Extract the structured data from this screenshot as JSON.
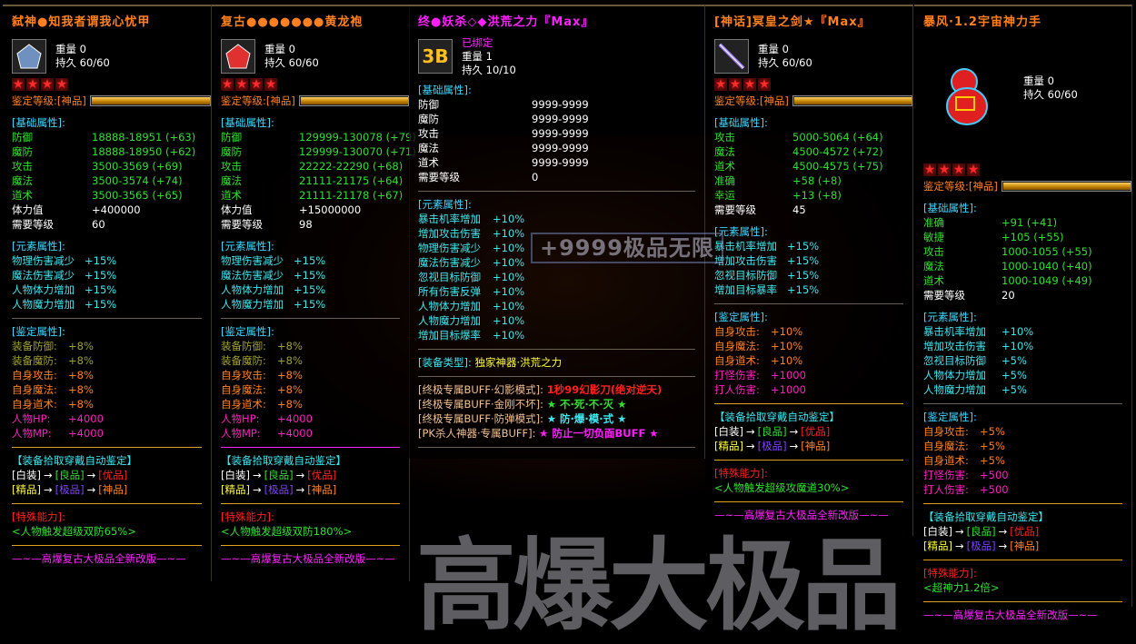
{
  "watermark": {
    "small": "+9999极品无限",
    "big": "高爆大极品"
  },
  "colors": {
    "green": "#30e030",
    "cyan": "#3ce8f0",
    "olive": "#a0a030",
    "orange": "#ff8020",
    "magenta": "#ff20c0",
    "white": "#ffffff",
    "header": "#3cd8ff",
    "divider_gold": "#e0a020",
    "divider_gray": "#6a6050"
  },
  "common": {
    "weight_label": "重量",
    "durability_label": "持久",
    "grade_label": "鉴定等级:",
    "arrow": "→",
    "autoid_header": "【装备拾取穿戴自动鉴定】",
    "tiers_row1": [
      {
        "text": "[白装]",
        "color": "#ffffff"
      },
      {
        "text": "[良品]",
        "color": "#30e030"
      },
      {
        "text": "[优品]",
        "color": "#ff2020"
      }
    ],
    "tiers_row2": [
      {
        "text": "[精品]",
        "color": "#ffff30"
      },
      {
        "text": "[极品]",
        "color": "#8040ff"
      },
      {
        "text": "[神品]",
        "color": "#ff8020"
      }
    ],
    "special_header": "[特殊能力]:",
    "footer": "—~—高爆复古大极品全新改版—~—"
  },
  "panels": [
    {
      "title": "弑神●知我者谓我心忧甲",
      "title_color": "#ff8020",
      "icon": "armor-icon",
      "icon_color": "#7090c0",
      "weight": "0",
      "durability": "60/60",
      "stars": 4,
      "grade": "[神品]",
      "grade_fill": 1.0,
      "basic_header": "[基础属性]:",
      "basic": [
        {
          "k": "防御",
          "v": "18888-18951 (+63)",
          "color": "#30e030"
        },
        {
          "k": "魔防",
          "v": "18888-18950 (+62)",
          "color": "#30e030"
        },
        {
          "k": "攻击",
          "v": "3500-3569 (+69)",
          "color": "#30e030"
        },
        {
          "k": "魔法",
          "v": "3500-3574 (+74)",
          "color": "#30e030"
        },
        {
          "k": "道术",
          "v": "3500-3565 (+65)",
          "color": "#30e030"
        },
        {
          "k": "体力值",
          "v": "+400000",
          "color": "#ffffff"
        },
        {
          "k": "需要等级",
          "v": "60",
          "color": "#ffffff"
        }
      ],
      "element_header": "[元素属性]:",
      "element": [
        {
          "k": "物理伤害减少",
          "v": "+15%"
        },
        {
          "k": "魔法伤害减少",
          "v": "+15%"
        },
        {
          "k": "人物体力增加",
          "v": "+15%"
        },
        {
          "k": "人物魔力增加",
          "v": "+15%"
        }
      ],
      "ident_header": "[鉴定属性]:",
      "ident": [
        {
          "k": "装备防御:",
          "v": "+8%",
          "color": "#a0a030"
        },
        {
          "k": "装备魔防:",
          "v": "+8%",
          "color": "#a0a030"
        },
        {
          "k": "自身攻击:",
          "v": "+8%",
          "color": "#ff8020"
        },
        {
          "k": "自身魔法:",
          "v": "+8%",
          "color": "#ff8020"
        },
        {
          "k": "自身道术:",
          "v": "+8%",
          "color": "#ff8020"
        },
        {
          "k": "人物HP:",
          "v": "+4000",
          "color": "#ff20c0"
        },
        {
          "k": "人物MP:",
          "v": "+4000",
          "color": "#ff20c0"
        }
      ],
      "ident_divider": "#e0a020",
      "special": "<人物触发超级双防65%>"
    },
    {
      "title": "复古●●●●●●●黄龙袍",
      "title_color": "#ff8020",
      "icon": "robe-icon",
      "icon_color": "#e03030",
      "weight": "0",
      "durability": "60/60",
      "stars": 4,
      "grade": "[神品]",
      "grade_fill": 1.0,
      "basic_header": "[基础属性]:",
      "basic": [
        {
          "k": "防御",
          "v": "129999-130078 (+79)",
          "color": "#30e030"
        },
        {
          "k": "魔防",
          "v": "129999-130070 (+71)",
          "color": "#30e030"
        },
        {
          "k": "攻击",
          "v": "22222-22290 (+68)",
          "color": "#30e030"
        },
        {
          "k": "魔法",
          "v": "21111-21175 (+64)",
          "color": "#30e030"
        },
        {
          "k": "道术",
          "v": "21111-21178 (+67)",
          "color": "#30e030"
        },
        {
          "k": "体力值",
          "v": "+15000000",
          "color": "#ffffff"
        },
        {
          "k": "需要等级",
          "v": "98",
          "color": "#ffffff"
        }
      ],
      "element_header": "[元素属性]:",
      "element": [
        {
          "k": "物理伤害减少",
          "v": "+15%"
        },
        {
          "k": "魔法伤害减少",
          "v": "+15%"
        },
        {
          "k": "人物体力增加",
          "v": "+15%"
        },
        {
          "k": "人物魔力增加",
          "v": "+15%"
        }
      ],
      "ident_header": "[鉴定属性]:",
      "ident": [
        {
          "k": "装备防御:",
          "v": "+8%",
          "color": "#a0a030"
        },
        {
          "k": "装备魔防:",
          "v": "+8%",
          "color": "#a0a030"
        },
        {
          "k": "自身攻击:",
          "v": "+8%",
          "color": "#ff8020"
        },
        {
          "k": "自身魔法:",
          "v": "+8%",
          "color": "#ff8020"
        },
        {
          "k": "自身道术:",
          "v": "+8%",
          "color": "#ff8020"
        },
        {
          "k": "人物HP:",
          "v": "+4000",
          "color": "#ff20c0"
        },
        {
          "k": "人物MP:",
          "v": "+4000",
          "color": "#ff20c0"
        }
      ],
      "ident_divider": "#ff20ff",
      "special": "<人物触发超级双防180%>"
    },
    {
      "title": "终●妖杀◇◆洪荒之力『Max』",
      "title_color": "#ff20ff",
      "icon": "emblem-icon",
      "icon_color": "#ffc020",
      "bound": "已绑定",
      "weight": "1",
      "durability": "10/10",
      "basic_header": "[基础属性]:",
      "basic": [
        {
          "k": "防御",
          "v": "9999-9999",
          "color": "#ffffff"
        },
        {
          "k": "魔防",
          "v": "9999-9999",
          "color": "#ffffff"
        },
        {
          "k": "攻击",
          "v": "9999-9999",
          "color": "#ffffff"
        },
        {
          "k": "魔法",
          "v": "9999-9999",
          "color": "#ffffff"
        },
        {
          "k": "道术",
          "v": "9999-9999",
          "color": "#ffffff"
        },
        {
          "k": "需要等级",
          "v": "0",
          "color": "#ffffff"
        }
      ],
      "element_header": "[元素属性]:",
      "element": [
        {
          "k": "暴击机率增加",
          "v": "+10%"
        },
        {
          "k": "增加攻击伤害",
          "v": "+10%"
        },
        {
          "k": "物理伤害减少",
          "v": "+10%"
        },
        {
          "k": "魔法伤害减少",
          "v": "+10%"
        },
        {
          "k": "忽视目标防御",
          "v": "+10%"
        },
        {
          "k": "所有伤害反弹",
          "v": "+10%"
        },
        {
          "k": "人物体力增加",
          "v": "+10%"
        },
        {
          "k": "人物魔力增加",
          "v": "+10%"
        },
        {
          "k": "增加目标爆率",
          "v": "+10%"
        }
      ],
      "type_label": "[装备类型]:",
      "type_value": "独家神器·洪荒之力",
      "buffs": [
        {
          "label": "[终极专属BUFF·幻影模式]:",
          "value": "1秒99幻影刀(绝对逆天)",
          "color": "#ff2020"
        },
        {
          "label": "[终极专属BUFF·金刚不坏]:",
          "value": "★ 不·死·不·灭 ★",
          "color": "#30e030"
        },
        {
          "label": "[终极专属BUFF·防弹模式]:",
          "value": "★ 防·爆·模·式 ★",
          "color": "#3ce8f0"
        },
        {
          "label": "[PK杀人神器·专属BUFF]:",
          "value": "★ 防止一切负面BUFF ★",
          "color": "#ff20ff"
        }
      ]
    },
    {
      "title": "[神话]冥皇之剑★『Max』",
      "title_color": "#ff8020",
      "icon": "sword-icon",
      "icon_color": "#a080ff",
      "weight": "0",
      "durability": "60/60",
      "stars": 4,
      "grade": "[神品]",
      "grade_fill": 1.0,
      "basic_header": "[基础属性]:",
      "basic": [
        {
          "k": "攻击",
          "v": "5000-5064 (+64)",
          "color": "#30e030"
        },
        {
          "k": "魔法",
          "v": "4500-4572 (+72)",
          "color": "#30e030"
        },
        {
          "k": "道术",
          "v": "4500-4575 (+75)",
          "color": "#30e030"
        },
        {
          "k": "准确",
          "v": "+58 (+8)",
          "color": "#30e030"
        },
        {
          "k": "幸运",
          "v": "+13 (+8)",
          "color": "#30e030"
        },
        {
          "k": "需要等级",
          "v": "45",
          "color": "#ffffff"
        }
      ],
      "element_header": "[元素属性]:",
      "element": [
        {
          "k": "暴击机率增加",
          "v": "+15%"
        },
        {
          "k": "增加攻击伤害",
          "v": "+15%"
        },
        {
          "k": "忽视目标防御",
          "v": "+15%"
        },
        {
          "k": "增加目标暴率",
          "v": "+15%"
        }
      ],
      "ident_header": "[鉴定属性]:",
      "ident": [
        {
          "k": "自身攻击:",
          "v": "+10%",
          "color": "#ff8020"
        },
        {
          "k": "自身魔法:",
          "v": "+10%",
          "color": "#ff8020"
        },
        {
          "k": "自身道术:",
          "v": "+10%",
          "color": "#ff8020"
        },
        {
          "k": "打怪伤害:",
          "v": "+1000",
          "color": "#ff20c0"
        },
        {
          "k": "打人伤害:",
          "v": "+1000",
          "color": "#ff20c0"
        }
      ],
      "ident_divider": "#e0a020",
      "special": "<人物触发超级攻魔道30%>"
    },
    {
      "title": "暴风·1.2宇宙神力手",
      "title_color": "#ff8020",
      "icon": "gourd-icon",
      "icon_color": "#e02020",
      "big_icon": true,
      "weight": "0",
      "durability": "60/60",
      "stars": 4,
      "grade": "[神品]",
      "grade_fill": 1.0,
      "basic_header": "[基础属性]:",
      "basic": [
        {
          "k": "准确",
          "v": "+91 (+41)",
          "color": "#30e030"
        },
        {
          "k": "敏捷",
          "v": "+105 (+55)",
          "color": "#30e030"
        },
        {
          "k": "攻击",
          "v": "1000-1055 (+55)",
          "color": "#30e030"
        },
        {
          "k": "魔法",
          "v": "1000-1040 (+40)",
          "color": "#30e030"
        },
        {
          "k": "道术",
          "v": "1000-1049 (+49)",
          "color": "#30e030"
        },
        {
          "k": "需要等级",
          "v": "20",
          "color": "#ffffff"
        }
      ],
      "element_header": "[元素属性]:",
      "element": [
        {
          "k": "暴击机率增加",
          "v": "+10%"
        },
        {
          "k": "增加攻击伤害",
          "v": "+10%"
        },
        {
          "k": "忽视目标防御",
          "v": "+5%"
        },
        {
          "k": "人物体力增加",
          "v": "+5%"
        },
        {
          "k": "人物魔力增加",
          "v": "+5%"
        }
      ],
      "ident_header": "[鉴定属性]:",
      "ident": [
        {
          "k": "自身攻击:",
          "v": "+5%",
          "color": "#ff8020"
        },
        {
          "k": "自身魔法:",
          "v": "+5%",
          "color": "#ff8020"
        },
        {
          "k": "自身道术:",
          "v": "+5%",
          "color": "#ff8020"
        },
        {
          "k": "打怪伤害:",
          "v": "+500",
          "color": "#ff20c0"
        },
        {
          "k": "打人伤害:",
          "v": "+500",
          "color": "#ff20c0"
        }
      ],
      "ident_divider": "#e0a020",
      "special": "<超神力1.2倍>"
    }
  ]
}
